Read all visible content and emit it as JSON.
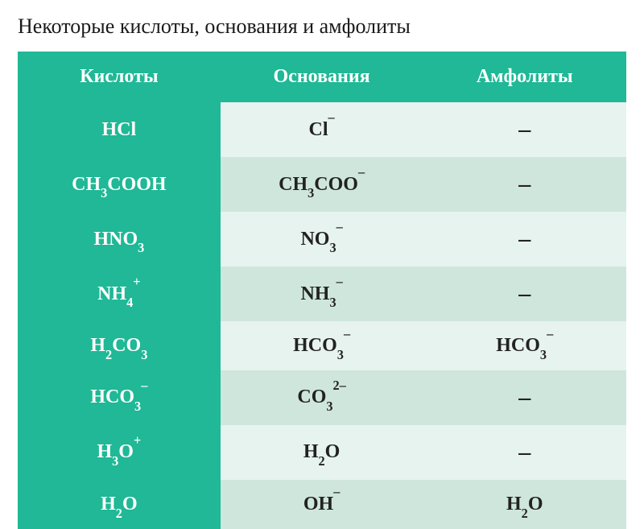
{
  "title": "Некоторые кислоты, основания и амфолиты",
  "table": {
    "headers": [
      "Кислоты",
      "Основания",
      "Амфолиты"
    ],
    "colors": {
      "header_bg": "#20b896",
      "acid_col_bg": "#20b896",
      "acid_text": "#ffffff",
      "header_text": "#ffffff",
      "row_light": "#e7f3ee",
      "row_dark": "#cfe6dd",
      "cell_text": "#222222",
      "title_color": "#1a1a1a"
    },
    "title_fontsize": 26,
    "header_fontsize": 24,
    "cell_fontsize": 24,
    "col_widths": [
      "33.3%",
      "33.3%",
      "33.4%"
    ],
    "rows": [
      {
        "acid": "HCl",
        "base": "Cl<sup>–</sup>",
        "ampholyte": "–"
      },
      {
        "acid": "CH<sub>3</sub>COOH",
        "base": "CH<sub>3</sub>COO<sup>–</sup>",
        "ampholyte": "–"
      },
      {
        "acid": "HNO<sub>3</sub>",
        "base": "NO<sub>3</sub><sup>–</sup>",
        "ampholyte": "–"
      },
      {
        "acid": "NH<sub>4</sub><sup>+</sup>",
        "base": "NH<sub>3</sub><sup>–</sup>",
        "ampholyte": "–"
      },
      {
        "acid": "H<sub>2</sub>CO<sub>3</sub>",
        "base": "HCO<sub>3</sub><sup>–</sup>",
        "ampholyte": "HCO<sub>3</sub><sup>–</sup>"
      },
      {
        "acid": "HCO<sub>3</sub><sup>–</sup>",
        "base": "CO<sub>3</sub><sup>2–</sup>",
        "ampholyte": "–"
      },
      {
        "acid": "H<sub>3</sub>O<sup>+</sup>",
        "base": "H<sub>2</sub>O",
        "ampholyte": "–"
      },
      {
        "acid": "H<sub>2</sub>O",
        "base": "OH<sup>–</sup>",
        "ampholyte": "H<sub>2</sub>O"
      }
    ]
  }
}
